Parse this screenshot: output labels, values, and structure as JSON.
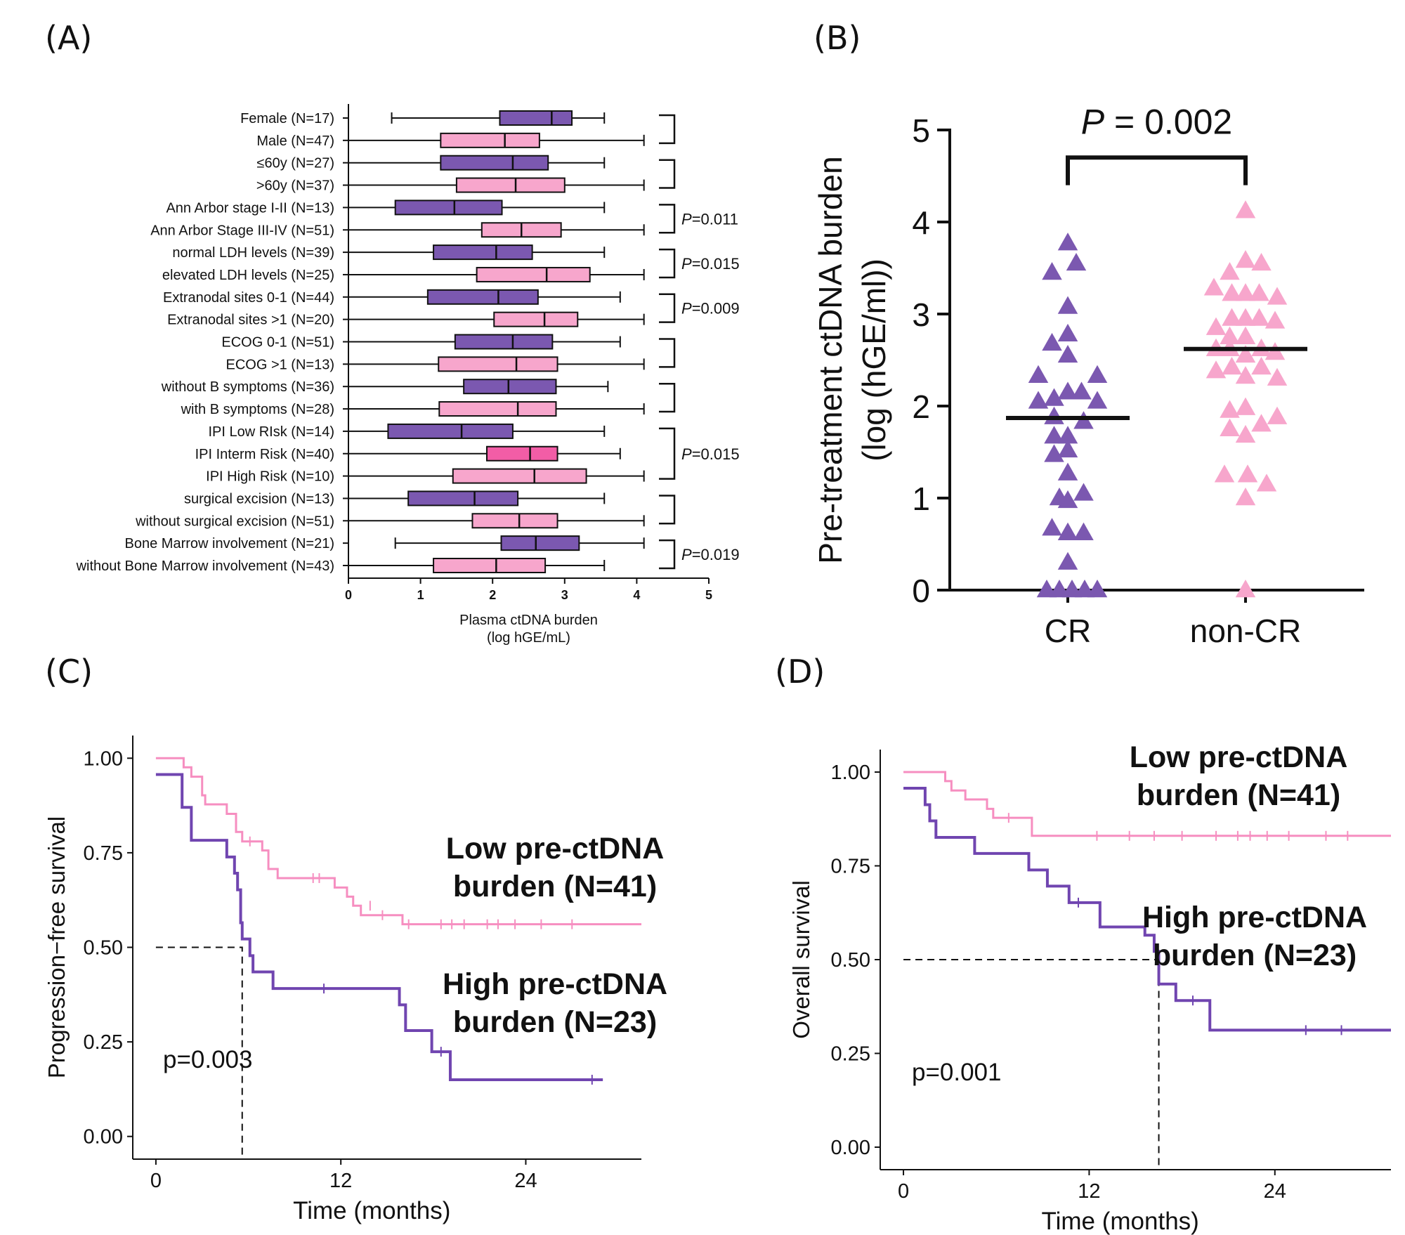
{
  "panels": {
    "A": {
      "label": "(A)"
    },
    "B": {
      "label": "(B)"
    },
    "C": {
      "label": "(C)"
    },
    "D": {
      "label": "(D)"
    }
  },
  "colors": {
    "purple": "#7b58b0",
    "pink": "#f7a6cc",
    "hotpink": "#f25da6",
    "km_pink": "#f68ec0",
    "km_purple": "#7045b0",
    "low_label": "#f07575",
    "high_label": "#6e3fae",
    "purple_line": "#6a42aa"
  },
  "chart_data": [
    {
      "panel": "A",
      "type": "box",
      "orientation": "horizontal",
      "xlabel": "Plasma ctDNA burden",
      "xlabel2": "(log hGE/mL)",
      "xlim": [
        0,
        5
      ],
      "xticks": [
        "0",
        "1",
        "2",
        "3",
        "4",
        "5"
      ],
      "groups": [
        {
          "label": "Female (N=17)",
          "min": 0.6,
          "q1": 2.1,
          "median": 2.82,
          "q3": 3.1,
          "max": 3.55,
          "color": "purple"
        },
        {
          "label": "Male (N=47)",
          "min": 0.0,
          "q1": 1.28,
          "median": 2.17,
          "q3": 2.65,
          "max": 4.1,
          "color": "pink"
        },
        {
          "label": "≤60y (N=27)",
          "min": 0.0,
          "q1": 1.28,
          "median": 2.28,
          "q3": 2.77,
          "max": 3.55,
          "color": "purple"
        },
        {
          "label": ">60y (N=37)",
          "min": 0.0,
          "q1": 1.5,
          "median": 2.32,
          "q3": 3.0,
          "max": 4.1,
          "color": "pink"
        },
        {
          "label": "Ann Arbor stage I-II (N=13)",
          "min": 0.0,
          "q1": 0.65,
          "median": 1.47,
          "q3": 2.13,
          "max": 3.55,
          "color": "purple"
        },
        {
          "label": "Ann Arbor Stage III-IV (N=51)",
          "min": 0.0,
          "q1": 1.85,
          "median": 2.4,
          "q3": 2.95,
          "max": 4.1,
          "color": "pink"
        },
        {
          "label": "normal LDH levels (N=39)",
          "min": 0.0,
          "q1": 1.18,
          "median": 2.05,
          "q3": 2.55,
          "max": 3.55,
          "color": "purple"
        },
        {
          "label": "elevated LDH levels (N=25)",
          "min": 0.0,
          "q1": 1.78,
          "median": 2.75,
          "q3": 3.35,
          "max": 4.1,
          "color": "pink"
        },
        {
          "label": "Extranodal sites 0-1 (N=44)",
          "min": 0.0,
          "q1": 1.1,
          "median": 2.08,
          "q3": 2.63,
          "max": 3.77,
          "color": "purple"
        },
        {
          "label": "Extranodal sites >1 (N=20)",
          "min": 0.0,
          "q1": 2.02,
          "median": 2.72,
          "q3": 3.18,
          "max": 4.1,
          "color": "pink"
        },
        {
          "label": "ECOG 0-1 (N=51)",
          "min": 0.0,
          "q1": 1.48,
          "median": 2.28,
          "q3": 2.83,
          "max": 3.77,
          "color": "purple"
        },
        {
          "label": "ECOG >1 (N=13)",
          "min": 0.0,
          "q1": 1.25,
          "median": 2.33,
          "q3": 2.9,
          "max": 4.1,
          "color": "pink"
        },
        {
          "label": "without B symptoms (N=36)",
          "min": 0.0,
          "q1": 1.6,
          "median": 2.22,
          "q3": 2.88,
          "max": 3.6,
          "color": "purple"
        },
        {
          "label": "with B symptoms (N=28)",
          "min": 0.0,
          "q1": 1.26,
          "median": 2.35,
          "q3": 2.88,
          "max": 4.1,
          "color": "pink"
        },
        {
          "label": "IPI Low RIsk (N=14)",
          "min": 0.0,
          "q1": 0.55,
          "median": 1.57,
          "q3": 2.28,
          "max": 3.55,
          "color": "purple"
        },
        {
          "label": "IPI Interm Risk (N=40)",
          "min": 0.0,
          "q1": 1.92,
          "median": 2.52,
          "q3": 2.9,
          "max": 3.77,
          "color": "hotpink"
        },
        {
          "label": "IPI High Risk (N=10)",
          "min": 0.0,
          "q1": 1.45,
          "median": 2.58,
          "q3": 3.3,
          "max": 4.1,
          "color": "pink"
        },
        {
          "label": "surgical excision (N=13)",
          "min": 0.0,
          "q1": 0.83,
          "median": 1.75,
          "q3": 2.35,
          "max": 3.55,
          "color": "purple"
        },
        {
          "label": "without surgical excision (N=51)",
          "min": 0.0,
          "q1": 1.72,
          "median": 2.37,
          "q3": 2.9,
          "max": 4.1,
          "color": "pink"
        },
        {
          "label": "Bone Marrow involvement (N=21)",
          "min": 0.65,
          "q1": 2.12,
          "median": 2.6,
          "q3": 3.2,
          "max": 4.1,
          "color": "purple"
        },
        {
          "label": "without Bone Marrow involvement (N=43)",
          "min": 0.0,
          "q1": 1.18,
          "median": 2.05,
          "q3": 2.73,
          "max": 3.55,
          "color": "pink"
        }
      ],
      "brackets": [
        {
          "from": 0,
          "to": 1,
          "p": ""
        },
        {
          "from": 2,
          "to": 3,
          "p": ""
        },
        {
          "from": 4,
          "to": 5,
          "p": "=0.011"
        },
        {
          "from": 6,
          "to": 7,
          "p": "=0.015"
        },
        {
          "from": 8,
          "to": 9,
          "p": "=0.009"
        },
        {
          "from": 10,
          "to": 11,
          "p": ""
        },
        {
          "from": 12,
          "to": 13,
          "p": ""
        },
        {
          "from": 14,
          "to": 16,
          "p": "=0.015"
        },
        {
          "from": 17,
          "to": 18,
          "p": ""
        },
        {
          "from": 19,
          "to": 20,
          "p": "=0.019"
        }
      ],
      "p_letter": "P"
    },
    {
      "panel": "B",
      "type": "scatter",
      "ylabel": "Pre-treatment ctDNA burden",
      "ylabel2": "(log (hGE/ml))",
      "ylim": [
        0,
        5
      ],
      "yticks": [
        "0",
        "1",
        "2",
        "3",
        "4",
        "5"
      ],
      "categories": [
        "CR",
        "non-CR"
      ],
      "significance": {
        "p_letter": "P",
        "p_value": "= 0.002"
      },
      "medians": [
        1.87,
        2.62
      ],
      "series": [
        {
          "name": "CR",
          "color": "purple",
          "points": [
            [
              0.0,
              3.77
            ],
            [
              -0.15,
              3.45
            ],
            [
              0.08,
              3.55
            ],
            [
              0.0,
              3.08
            ],
            [
              -0.15,
              2.68
            ],
            [
              0.0,
              2.78
            ],
            [
              0.0,
              2.55
            ],
            [
              -0.28,
              2.33
            ],
            [
              0.28,
              2.33
            ],
            [
              -0.28,
              2.05
            ],
            [
              -0.13,
              2.08
            ],
            [
              0.0,
              2.15
            ],
            [
              0.13,
              2.15
            ],
            [
              0.28,
              2.05
            ],
            [
              -0.13,
              1.88
            ],
            [
              0.15,
              1.83
            ],
            [
              -0.13,
              1.67
            ],
            [
              0.0,
              1.67
            ],
            [
              -0.13,
              1.47
            ],
            [
              0.0,
              1.52
            ],
            [
              0.0,
              1.27
            ],
            [
              -0.08,
              1.0
            ],
            [
              0.0,
              0.97
            ],
            [
              0.15,
              1.05
            ],
            [
              -0.15,
              0.67
            ],
            [
              0.0,
              0.62
            ],
            [
              0.15,
              0.62
            ],
            [
              0.0,
              0.3
            ],
            [
              -0.2,
              0.0
            ],
            [
              -0.08,
              0.0
            ],
            [
              0.04,
              0.0
            ],
            [
              0.16,
              0.0
            ],
            [
              0.28,
              0.0
            ]
          ]
        },
        {
          "name": "non-CR",
          "color": "pink",
          "points": [
            [
              0.0,
              4.12
            ],
            [
              0.0,
              3.58
            ],
            [
              0.15,
              3.55
            ],
            [
              -0.15,
              3.45
            ],
            [
              -0.3,
              3.28
            ],
            [
              0.3,
              3.18
            ],
            [
              -0.13,
              3.22
            ],
            [
              0.13,
              3.22
            ],
            [
              0.0,
              3.22
            ],
            [
              -0.28,
              2.85
            ],
            [
              -0.13,
              2.95
            ],
            [
              0.0,
              2.95
            ],
            [
              0.13,
              2.95
            ],
            [
              0.28,
              2.92
            ],
            [
              -0.15,
              2.75
            ],
            [
              0.0,
              2.75
            ],
            [
              -0.28,
              2.62
            ],
            [
              -0.15,
              2.62
            ],
            [
              0.0,
              2.55
            ],
            [
              0.15,
              2.62
            ],
            [
              0.28,
              2.58
            ],
            [
              -0.28,
              2.38
            ],
            [
              -0.13,
              2.42
            ],
            [
              0.0,
              2.32
            ],
            [
              0.15,
              2.42
            ],
            [
              0.3,
              2.3
            ],
            [
              -0.15,
              1.95
            ],
            [
              0.0,
              1.98
            ],
            [
              0.3,
              1.88
            ],
            [
              -0.15,
              1.75
            ],
            [
              0.0,
              1.68
            ],
            [
              0.15,
              1.8
            ],
            [
              -0.2,
              1.25
            ],
            [
              0.02,
              1.25
            ],
            [
              0.2,
              1.15
            ],
            [
              0.0,
              1.0
            ],
            [
              0.0,
              0.0
            ]
          ]
        }
      ]
    },
    {
      "panel": "C",
      "type": "line",
      "subtype": "kaplan-meier",
      "ylabel": "Progression−free survival",
      "xlabel": "Time (months)",
      "xlim": [
        -1.5,
        31.5
      ],
      "ylim": [
        -0.06,
        1.06
      ],
      "xticks": [
        "0",
        "12",
        "24"
      ],
      "yticks": [
        "0.00",
        "0.25",
        "0.50",
        "0.75",
        "1.00"
      ],
      "pvalue": "p=0.003",
      "median_line": {
        "y": 0.5,
        "x": 5.6
      },
      "series": [
        {
          "name": "Low pre-ctDNA burden (N=41)",
          "label_lines": [
            "Low pre-ctDNA",
            "burden (N=41)"
          ],
          "color": "km_pink",
          "steps": [
            [
              0,
              1.0
            ],
            [
              1.8,
              0.976
            ],
            [
              2.3,
              0.951
            ],
            [
              3.0,
              0.902
            ],
            [
              3.2,
              0.878
            ],
            [
              4.6,
              0.853
            ],
            [
              5.2,
              0.805
            ],
            [
              5.6,
              0.78
            ],
            [
              6.9,
              0.756
            ],
            [
              7.3,
              0.707
            ],
            [
              7.9,
              0.683
            ],
            [
              11.6,
              0.658
            ],
            [
              12.4,
              0.634
            ],
            [
              12.8,
              0.61
            ],
            [
              13.3,
              0.585
            ],
            [
              16.0,
              0.561
            ],
            [
              31.5,
              0.561
            ]
          ],
          "censors": [
            [
              6.1,
              0.78
            ],
            [
              10.2,
              0.683
            ],
            [
              10.6,
              0.683
            ],
            [
              13.9,
              0.61
            ],
            [
              14.7,
              0.585
            ],
            [
              16.4,
              0.561
            ],
            [
              18.5,
              0.561
            ],
            [
              19.2,
              0.561
            ],
            [
              20.0,
              0.561
            ],
            [
              21.5,
              0.561
            ],
            [
              22.2,
              0.561
            ],
            [
              23.3,
              0.561
            ],
            [
              25.0,
              0.561
            ],
            [
              27.0,
              0.561
            ]
          ]
        },
        {
          "name": "High pre-ctDNA burden (N=23)",
          "label_lines": [
            "High pre-ctDNA",
            "burden (N=23)"
          ],
          "color": "km_purple",
          "steps": [
            [
              0,
              0.957
            ],
            [
              1.7,
              0.87
            ],
            [
              2.3,
              0.783
            ],
            [
              4.6,
              0.739
            ],
            [
              5.1,
              0.696
            ],
            [
              5.3,
              0.652
            ],
            [
              5.5,
              0.565
            ],
            [
              5.6,
              0.522
            ],
            [
              6.1,
              0.478
            ],
            [
              6.3,
              0.435
            ],
            [
              7.6,
              0.391
            ],
            [
              15.8,
              0.348
            ],
            [
              16.2,
              0.28
            ],
            [
              17.9,
              0.224
            ],
            [
              19.1,
              0.15
            ],
            [
              29.0,
              0.15
            ]
          ],
          "censors": [
            [
              10.9,
              0.391
            ],
            [
              18.5,
              0.224
            ],
            [
              28.3,
              0.15
            ]
          ]
        }
      ]
    },
    {
      "panel": "D",
      "type": "line",
      "subtype": "kaplan-meier",
      "ylabel": "Overall survival",
      "xlabel": "Time (months)",
      "xlim": [
        -1.5,
        31.5
      ],
      "ylim": [
        -0.06,
        1.06
      ],
      "xticks": [
        "0",
        "12",
        "24"
      ],
      "yticks": [
        "0.00",
        "0.25",
        "0.50",
        "0.75",
        "1.00"
      ],
      "pvalue": "p=0.001",
      "median_line": {
        "y": 0.5,
        "x": 16.5
      },
      "series": [
        {
          "name": "Low pre-ctDNA burden (N=41)",
          "label_lines": [
            "Low pre-ctDNA",
            "burden (N=41)"
          ],
          "color": "km_pink",
          "steps": [
            [
              0,
              1.0
            ],
            [
              2.7,
              0.976
            ],
            [
              3.1,
              0.951
            ],
            [
              4.0,
              0.927
            ],
            [
              5.4,
              0.902
            ],
            [
              5.8,
              0.878
            ],
            [
              8.3,
              0.83
            ],
            [
              31.5,
              0.83
            ]
          ],
          "censors": [
            [
              6.8,
              0.878
            ],
            [
              12.5,
              0.83
            ],
            [
              14.6,
              0.83
            ],
            [
              16.2,
              0.83
            ],
            [
              18.0,
              0.83
            ],
            [
              20.2,
              0.83
            ],
            [
              21.6,
              0.83
            ],
            [
              22.4,
              0.83
            ],
            [
              23.5,
              0.83
            ],
            [
              24.9,
              0.83
            ],
            [
              27.3,
              0.83
            ],
            [
              28.7,
              0.83
            ]
          ]
        },
        {
          "name": "High pre-ctDNA burden (N=23)",
          "label_lines": [
            "High pre-ctDNA",
            "burden (N=23)"
          ],
          "color": "km_purple",
          "steps": [
            [
              0,
              0.957
            ],
            [
              1.4,
              0.913
            ],
            [
              1.7,
              0.87
            ],
            [
              2.1,
              0.826
            ],
            [
              4.6,
              0.783
            ],
            [
              8.1,
              0.739
            ],
            [
              9.3,
              0.696
            ],
            [
              10.7,
              0.652
            ],
            [
              12.7,
              0.587
            ],
            [
              15.6,
              0.565
            ],
            [
              16.2,
              0.522
            ],
            [
              16.5,
              0.435
            ],
            [
              17.6,
              0.391
            ],
            [
              19.8,
              0.312
            ],
            [
              31.5,
              0.312
            ]
          ],
          "censors": [
            [
              11.3,
              0.652
            ],
            [
              18.7,
              0.391
            ],
            [
              26.0,
              0.312
            ],
            [
              28.3,
              0.312
            ]
          ]
        }
      ]
    }
  ]
}
